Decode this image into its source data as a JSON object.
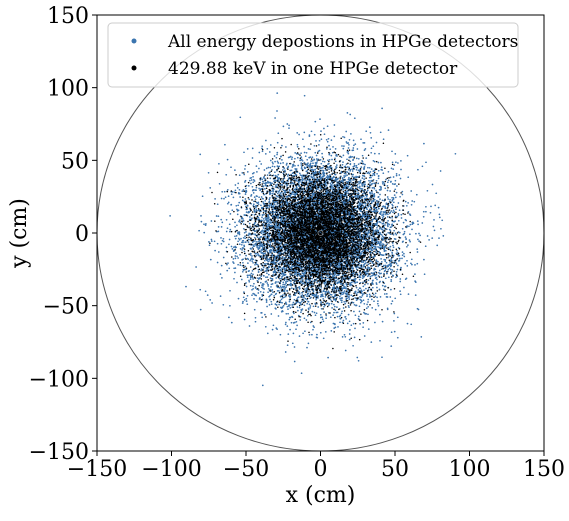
{
  "chart_data": {
    "type": "scatter",
    "title": "",
    "xlabel": "x (cm)",
    "ylabel": "y (cm)",
    "xlim": [
      -150,
      150
    ],
    "ylim": [
      -150,
      150
    ],
    "x_ticks": [
      -150,
      -100,
      -50,
      0,
      50,
      100,
      150
    ],
    "y_ticks": [
      -150,
      -100,
      -50,
      0,
      50,
      100,
      150
    ],
    "x_tick_labels": [
      "−150",
      "−100",
      "−50",
      "0",
      "50",
      "100",
      "150"
    ],
    "y_tick_labels": [
      "−150",
      "−100",
      "−50",
      "0",
      "50",
      "100",
      "150"
    ],
    "grid": false,
    "legend_position": "top",
    "boundary_circle": {
      "center": [
        0,
        0
      ],
      "radius": 150,
      "color": "#555555"
    },
    "center_marker": [
      0,
      0
    ],
    "series": [
      {
        "name": "All energy depostions in HPGe detectors",
        "color": "#3b75af",
        "distribution": "gaussian",
        "center": [
          0,
          0
        ],
        "sigma": 25
      },
      {
        "name": "429.88 keV in one HPGe detector",
        "color": "#000000",
        "distribution": "gaussian",
        "center": [
          0,
          0
        ],
        "sigma": 20
      }
    ]
  }
}
